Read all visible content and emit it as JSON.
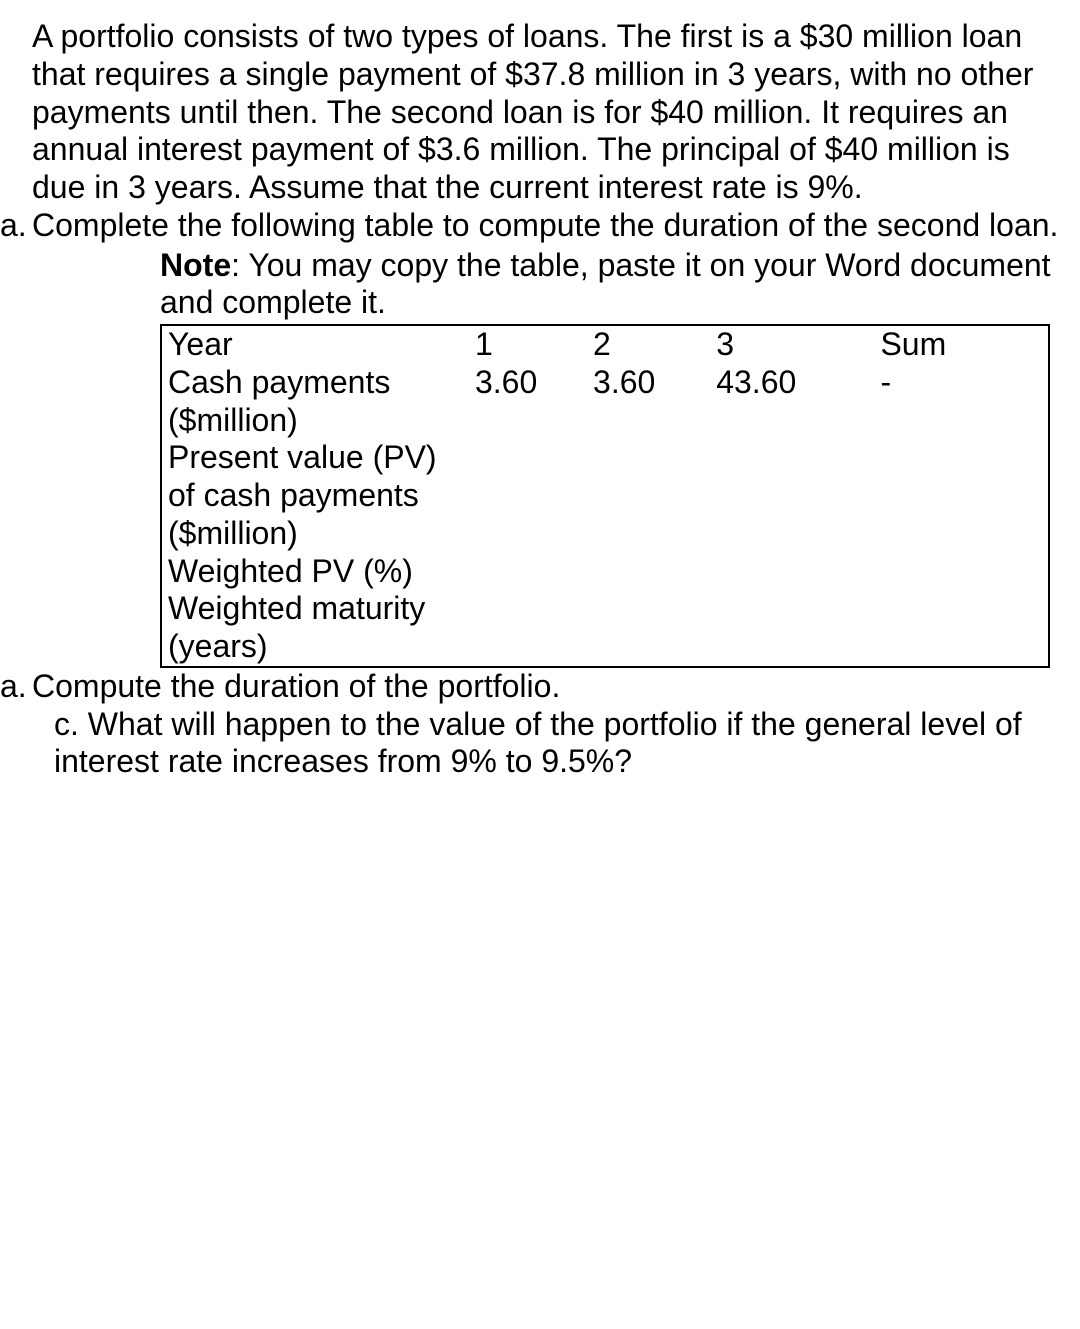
{
  "intro": "A portfolio consists of two types of loans. The first is a $30 million loan that requires a single payment of $37.8 million in 3 years, with no other payments until then. The second loan is for $40 million. It requires an annual interest payment of $3.6 million. The principal of $40 million is due in 3 years. Assume that the current interest rate is 9%.",
  "part_a": {
    "marker": "a.",
    "text": "Complete the following table to compute the duration of the second loan."
  },
  "note": {
    "label": "Note",
    "text": ": You may copy the table, paste it on your Word document and complete it."
  },
  "table": {
    "headers": {
      "label": "Year",
      "c1": "1",
      "c2": "2",
      "c3": "3",
      "sum": "Sum"
    },
    "rows": {
      "cash": {
        "label": "Cash payments ($million)",
        "c1": "3.60",
        "c2": "3.60",
        "c3": "43.60",
        "sum": "-"
      },
      "pv": {
        "label": "Present value (PV) of cash payments ($million)",
        "c1": "",
        "c2": "",
        "c3": "",
        "sum": ""
      },
      "wpv": {
        "label": "Weighted PV (%)",
        "c1": "",
        "c2": "",
        "c3": "",
        "sum": ""
      },
      "wm": {
        "label": "Weighted maturity (years)",
        "c1": "",
        "c2": "",
        "c3": "",
        "sum": ""
      }
    }
  },
  "part_b": {
    "marker": "a.",
    "text": "Compute the duration of the portfolio."
  },
  "part_c": "c. What will happen to the value of the portfolio if the general level of interest rate increases from 9% to 9.5%?"
}
